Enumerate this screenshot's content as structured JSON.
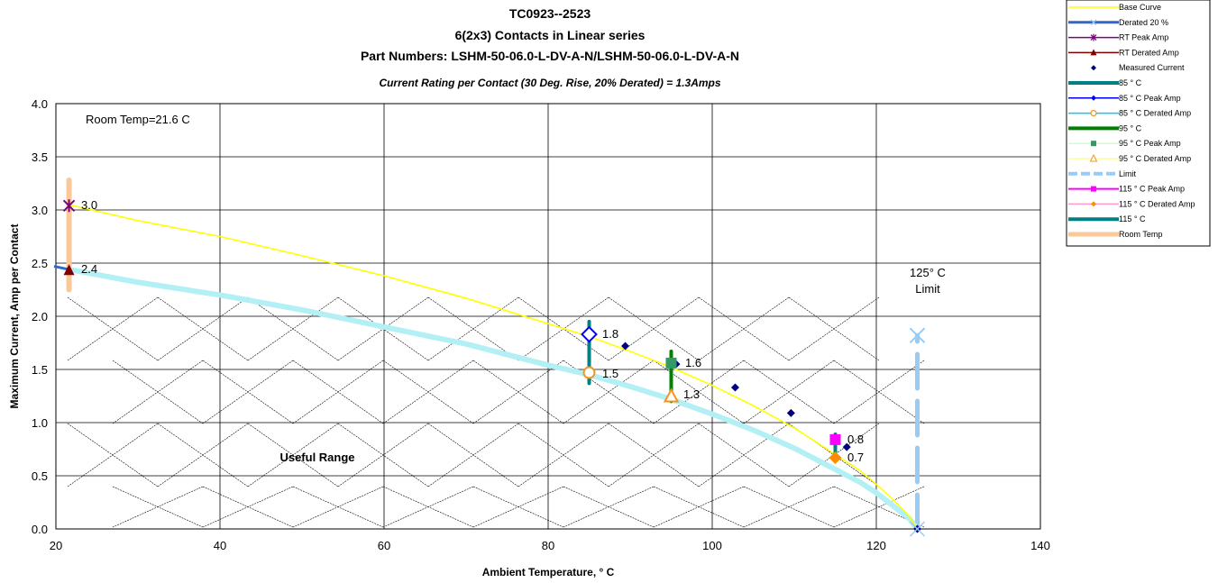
{
  "chart_data": {
    "type": "line",
    "title_lines": [
      "TC0923--2523",
      "6(2x3) Contacts in Linear series",
      "Part Numbers: LSHM-50-06.0-L-DV-A-N/LSHM-50-06.0-L-DV-A-N"
    ],
    "subtitle": "Current Rating per Contact (30 Deg. Rise, 20% Derated) = 1.3Amps",
    "xlabel": "Ambient Temperature,  ° C",
    "ylabel": "Maximum Current, Amp per Contact",
    "xlim": [
      20,
      140
    ],
    "ylim": [
      0,
      4
    ],
    "xticks": [
      20,
      40,
      60,
      80,
      100,
      120,
      140
    ],
    "yticks": [
      0.0,
      0.5,
      1.0,
      1.5,
      2.0,
      2.5,
      3.0,
      3.5,
      4.0
    ],
    "xtick_labels": [
      "20",
      "40",
      "60",
      "80",
      "100",
      "120",
      "140"
    ],
    "ytick_labels": [
      "0.0",
      "0.5",
      "1.0",
      "1.5",
      "2.0",
      "2.5",
      "3.0",
      "3.5",
      "4.0"
    ],
    "grid": true,
    "annotations": {
      "room_temp": "Room Temp=21.6 C",
      "useful_range": "Useful Range",
      "limit_line1": "125° C",
      "limit_line2": "Limit",
      "v_30": "3.0",
      "v_24": "2.4",
      "v_18": "1.8",
      "v_15": "1.5",
      "v_16": "1.6",
      "v_13": "1.3",
      "v_08": "0.8",
      "v_07": "0.7"
    },
    "series": [
      {
        "name": "Base Curve",
        "color": "#ffff00",
        "x": [
          21.6,
          30,
          40,
          50,
          60,
          70,
          80,
          85,
          90,
          95,
          100,
          105,
          110,
          115,
          118,
          120,
          122,
          124,
          125
        ],
        "y": [
          3.05,
          2.9,
          2.75,
          2.57,
          2.38,
          2.17,
          1.93,
          1.81,
          1.67,
          1.52,
          1.35,
          1.16,
          0.95,
          0.7,
          0.55,
          0.42,
          0.28,
          0.12,
          0.0
        ]
      },
      {
        "name": "Derated 20 %",
        "color": "#b3f0f5",
        "x": [
          21.6,
          30,
          40,
          50,
          60,
          70,
          80,
          85,
          90,
          95,
          100,
          105,
          110,
          115,
          118,
          120,
          122,
          124,
          125
        ],
        "y": [
          2.44,
          2.32,
          2.2,
          2.06,
          1.9,
          1.74,
          1.54,
          1.45,
          1.34,
          1.22,
          1.08,
          0.93,
          0.76,
          0.56,
          0.44,
          0.34,
          0.22,
          0.1,
          0.0
        ]
      },
      {
        "name": "Measured Current",
        "color": "#000080",
        "x": [
          85.0,
          89.4,
          95.6,
          102.8,
          109.6,
          116.4,
          125.0
        ],
        "y": [
          1.83,
          1.72,
          1.55,
          1.33,
          1.09,
          0.77,
          0.0
        ]
      },
      {
        "name": "RT Peak Amp",
        "color": "#800080",
        "x": [
          21.6
        ],
        "y": [
          3.04
        ]
      },
      {
        "name": "RT Derated Amp",
        "color": "#800000",
        "x": [
          21.6
        ],
        "y": [
          2.43
        ]
      },
      {
        "name": "85 ° C Peak Amp",
        "color": "#0000ff",
        "x": [
          85
        ],
        "y": [
          1.83
        ]
      },
      {
        "name": "85 ° C Derated Amp",
        "color": "#f7931e",
        "x": [
          85
        ],
        "y": [
          1.47
        ]
      },
      {
        "name": "95 ° C Peak Amp",
        "color": "#339966",
        "x": [
          95
        ],
        "y": [
          1.56
        ]
      },
      {
        "name": "95 ° C Derated Amp",
        "color": "#f7931e",
        "x": [
          95
        ],
        "y": [
          1.25
        ]
      },
      {
        "name": "115  ° C Peak Amp",
        "color": "#ff00ff",
        "x": [
          115
        ],
        "y": [
          0.84
        ]
      },
      {
        "name": "115  ° C Derated Amp",
        "color": "#ff8c00",
        "x": [
          115
        ],
        "y": [
          0.67
        ]
      },
      {
        "name": "Limit",
        "color": "#99ccf5",
        "x": [
          125,
          125
        ],
        "y": [
          0,
          1.82
        ]
      },
      {
        "name": "Room Temp",
        "color": "#f9c99a",
        "x": [
          21.6,
          21.6
        ],
        "y": [
          2.25,
          3.28
        ]
      },
      {
        "name": "85 ° C",
        "color": "#008080",
        "x": [
          85,
          85
        ],
        "y": [
          1.37,
          1.95
        ]
      },
      {
        "name": "95 ° C",
        "color": "#008000",
        "x": [
          95,
          95
        ],
        "y": [
          1.2,
          1.67
        ]
      },
      {
        "name": "115  ° C",
        "color": "#008080",
        "x": [
          115,
          115
        ],
        "y": [
          0.64,
          0.89
        ]
      }
    ],
    "legend": {
      "placement": "top-right",
      "entries": [
        "Base Curve",
        "Derated 20 %",
        "RT Peak Amp",
        "RT Derated Amp",
        "Measured Current",
        "85 ° C",
        "85 ° C Peak Amp",
        "85 ° C Derated Amp",
        "95 ° C",
        "95 ° C Peak Amp",
        "95 ° C Derated Amp",
        "Limit",
        "115  ° C Peak Amp",
        "115  ° C Derated Amp",
        "115  ° C",
        "Room Temp"
      ]
    }
  }
}
